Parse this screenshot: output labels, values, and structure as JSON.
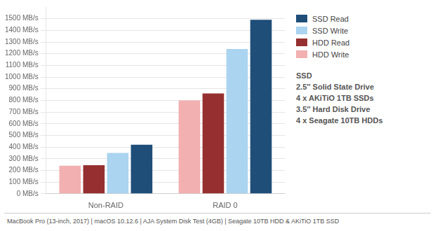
{
  "chart_data": {
    "type": "bar",
    "categories": [
      "Non-RAID",
      "RAID 0"
    ],
    "series": [
      {
        "name": "HDD Write",
        "color": "#f2b0b0",
        "values": [
          240,
          800
        ]
      },
      {
        "name": "HDD Read",
        "color": "#963030",
        "values": [
          245,
          860
        ]
      },
      {
        "name": "SSD Write",
        "color": "#aad4f0",
        "values": [
          350,
          1240
        ]
      },
      {
        "name": "SSD Read",
        "color": "#1f4e79",
        "values": [
          420,
          1490
        ]
      }
    ],
    "ylim": [
      0,
      1600
    ],
    "yticks": [
      {
        "value": 0,
        "label": "0 MB/s"
      },
      {
        "value": 100,
        "label": "100 MB/s"
      },
      {
        "value": 200,
        "label": "200 MB/s"
      },
      {
        "value": 300,
        "label": "300 MB/s"
      },
      {
        "value": 400,
        "label": "400 MB/s"
      },
      {
        "value": 500,
        "label": "500 MB/s"
      },
      {
        "value": 600,
        "label": "600 MB/s"
      },
      {
        "value": 700,
        "label": "700 MB/s"
      },
      {
        "value": 800,
        "label": "800 MB/s"
      },
      {
        "value": 900,
        "label": "900 MB/s"
      },
      {
        "value": 1000,
        "label": "1000 MB/s"
      },
      {
        "value": 1100,
        "label": "1100 MB/s"
      },
      {
        "value": 1200,
        "label": "1200 MB/s"
      },
      {
        "value": 1300,
        "label": "1300 MB/s"
      },
      {
        "value": 1400,
        "label": "1400 MB/s"
      },
      {
        "value": 1500,
        "label": "1500 MB/s"
      }
    ],
    "grid": true,
    "legend": "right",
    "annotations": [
      "SSD",
      "2.5″ Solid State Drive",
      "4 x AKiTiO 1TB SSDs",
      "3.5″ Hard Disk Drive",
      "4 x Seagate 10TB HDDs",
      "MacBook Pro (13-inch, 2017) | macOS 10.12.6 | AJA System Disk Test (4GB) | Seagate 10TB HDD & AKiTiO 1TB SSD"
    ]
  }
}
